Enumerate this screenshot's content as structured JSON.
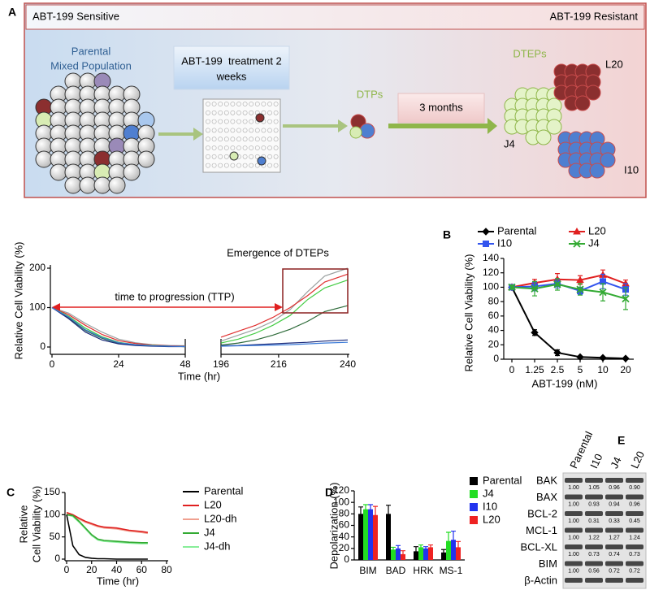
{
  "panel_a": {
    "label": "A",
    "left_header": "ABT-199 Sensitive",
    "right_header": "ABT-199 Resistant",
    "parental": [
      "Parental",
      "Mixed Population"
    ],
    "treatment": [
      "ABT-199  treatment 2",
      "weeks"
    ],
    "dtps": "DTPs",
    "duration": "3 months",
    "dteps": "DTEPs",
    "clones": [
      "L20",
      "J4",
      "I10"
    ]
  },
  "chart_data": [
    {
      "type": "line",
      "title": "Emergence of DTEPs",
      "annotation": "time to progression (TTP)",
      "xlabel": "Time (hr)",
      "ylabel": "Relative Cell Viability (%)",
      "x": [
        0,
        6,
        12,
        18,
        24,
        30,
        36,
        42,
        48,
        196,
        202,
        208,
        214,
        220,
        226,
        232,
        240
      ],
      "xbreak": [
        48,
        196
      ],
      "xlim": [
        0,
        240
      ],
      "xticks": [
        0,
        24,
        48,
        196,
        216,
        240
      ],
      "ylim": [
        0,
        200
      ],
      "yticks": [
        0,
        100,
        200
      ],
      "series": [
        {
          "color": "#9aa0a0",
          "values": [
            100,
            86,
            60,
            38,
            20,
            11,
            6,
            4,
            3,
            15,
            30,
            45,
            65,
            95,
            140,
            180,
            200
          ]
        },
        {
          "color": "#e03030",
          "values": [
            100,
            82,
            55,
            32,
            16,
            9,
            5,
            3,
            2,
            25,
            40,
            55,
            75,
            100,
            130,
            165,
            185
          ]
        },
        {
          "color": "#44cc44",
          "values": [
            100,
            78,
            48,
            26,
            12,
            6,
            4,
            2,
            1,
            10,
            20,
            35,
            55,
            80,
            120,
            150,
            170
          ]
        },
        {
          "color": "#2e6b3a",
          "values": [
            100,
            74,
            42,
            22,
            10,
            5,
            3,
            2,
            1,
            5,
            10,
            18,
            30,
            45,
            65,
            90,
            105
          ]
        },
        {
          "color": "#1a2a7a",
          "values": [
            100,
            72,
            38,
            18,
            8,
            4,
            2,
            1,
            1,
            3,
            4,
            6,
            8,
            10,
            12,
            15,
            18
          ]
        },
        {
          "color": "#3a7ad8",
          "values": [
            100,
            76,
            44,
            24,
            11,
            6,
            3,
            2,
            1,
            2,
            3,
            4,
            5,
            6,
            8,
            10,
            12
          ]
        }
      ]
    },
    {
      "type": "line",
      "panel": "B",
      "xlabel": "ABT-199 (nM)",
      "ylabel": "Relative Cell Viability (%)",
      "legend": "top",
      "categories": [
        "0",
        "1.25",
        "2.5",
        "5",
        "10",
        "20"
      ],
      "ylim": [
        0,
        140
      ],
      "yticks": [
        0,
        20,
        40,
        60,
        80,
        100,
        120,
        140
      ],
      "series": [
        {
          "name": "Parental",
          "color": "#000000",
          "marker": "diamond",
          "values": [
            100,
            37,
            9,
            3,
            2,
            1
          ],
          "errors": [
            2,
            4,
            4,
            1,
            1,
            1
          ]
        },
        {
          "name": "L20",
          "color": "#e02020",
          "marker": "triangle",
          "values": [
            100,
            106,
            111,
            110,
            117,
            105
          ],
          "errors": [
            3,
            5,
            8,
            6,
            7,
            5
          ]
        },
        {
          "name": "I10",
          "color": "#3355ee",
          "marker": "square",
          "values": [
            100,
            101,
            105,
            95,
            108,
            97
          ],
          "errors": [
            3,
            6,
            6,
            5,
            10,
            8
          ]
        },
        {
          "name": "J4",
          "color": "#33aa33",
          "marker": "x",
          "values": [
            100,
            98,
            104,
            97,
            93,
            84
          ],
          "errors": [
            3,
            10,
            8,
            8,
            12,
            15
          ]
        }
      ]
    },
    {
      "type": "line",
      "panel": "C",
      "xlabel": "Time (hr)",
      "ylabel": [
        "Relative",
        "Cell Viability (%)"
      ],
      "legend": "right",
      "x": [
        0,
        5,
        10,
        15,
        20,
        25,
        30,
        40,
        50,
        60,
        65
      ],
      "xlim": [
        0,
        80
      ],
      "xticks": [
        0,
        20,
        40,
        60,
        80
      ],
      "ylim": [
        0,
        150
      ],
      "yticks": [
        0,
        50,
        100,
        150
      ],
      "series": [
        {
          "name": "Parental",
          "color": "#000000",
          "values": [
            100,
            30,
            10,
            4,
            2,
            1,
            1,
            0,
            0,
            0,
            0
          ]
        },
        {
          "name": "L20",
          "color": "#e02020",
          "values": [
            105,
            100,
            92,
            85,
            80,
            75,
            72,
            70,
            65,
            62,
            60
          ]
        },
        {
          "name": "L20-dh",
          "color": "#f0a090",
          "values": [
            103,
            98,
            90,
            83,
            78,
            73,
            70,
            68,
            63,
            60,
            58
          ]
        },
        {
          "name": "J4",
          "color": "#33aa33",
          "values": [
            100,
            98,
            85,
            70,
            55,
            45,
            42,
            40,
            38,
            37,
            37
          ]
        },
        {
          "name": "J4-dh",
          "color": "#88ee99",
          "values": [
            100,
            96,
            83,
            68,
            53,
            43,
            40,
            38,
            36,
            35,
            35
          ]
        }
      ]
    },
    {
      "type": "bar",
      "panel": "D",
      "ylabel": "Depolarization (%)",
      "legend": "right",
      "categories": [
        "BIM",
        "BAD",
        "HRK",
        "MS-1"
      ],
      "ylim": [
        0,
        120
      ],
      "yticks": [
        0,
        20,
        40,
        60,
        80,
        100,
        120
      ],
      "series": [
        {
          "name": "Parental",
          "color": "#000000",
          "values": [
            80,
            80,
            15,
            13
          ],
          "errors": [
            12,
            15,
            8,
            5
          ]
        },
        {
          "name": "J4",
          "color": "#22dd22",
          "values": [
            88,
            18,
            22,
            33
          ],
          "errors": [
            8,
            4,
            4,
            15
          ]
        },
        {
          "name": "I10",
          "color": "#2233ee",
          "values": [
            88,
            20,
            20,
            35
          ],
          "errors": [
            8,
            5,
            3,
            15
          ]
        },
        {
          "name": "L20",
          "color": "#ee2222",
          "values": [
            78,
            10,
            22,
            22
          ],
          "errors": [
            15,
            6,
            4,
            10
          ]
        }
      ]
    }
  ],
  "panel_e": {
    "label": "E",
    "columns": [
      "Parental",
      "I10",
      "J4",
      "L20"
    ],
    "rows": [
      {
        "protein": "BAK",
        "ratios": [
          "1.00",
          "1.05",
          "0.96",
          "0.90"
        ]
      },
      {
        "protein": "BAX",
        "ratios": [
          "1.00",
          "0.93",
          "0.94",
          "0.96"
        ]
      },
      {
        "protein": "BCL-2",
        "ratios": [
          "1.00",
          "0.31",
          "0.33",
          "0.45"
        ]
      },
      {
        "protein": "MCL-1",
        "ratios": [
          "1.00",
          "1.22",
          "1.27",
          "1.24"
        ]
      },
      {
        "protein": "BCL-XL",
        "ratios": [
          "1.00",
          "0.73",
          "0.74",
          "0.73"
        ]
      },
      {
        "protein": "BIM",
        "ratios": [
          "1.00",
          "0.56",
          "0.72",
          "0.72"
        ]
      },
      {
        "protein": "β-Actin"
      }
    ]
  }
}
